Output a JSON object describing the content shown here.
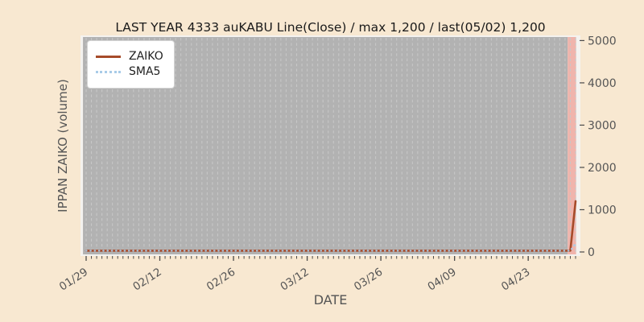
{
  "colors": {
    "fig_bg": "#f8e8d1",
    "plot_face": "#f4f2ef",
    "bars_fill": "#b2b2b2",
    "grid_line": "#c7c7c7",
    "band": "#f0b4ac",
    "zaiko": "#a64b2a",
    "sma5": "#a8cbe8",
    "tick_mark": "#4a4a4a",
    "text_dark": "#1a1a1a",
    "text_muted": "#555555"
  },
  "chart_data": {
    "type": "line",
    "title": "LAST YEAR 4333 auKABU Line(Close) / max 1,200 / last(05/02) 1,200",
    "xlabel": "DATE",
    "ylabel": "IPPAN ZAIKO (volume)",
    "ylim": [
      0,
      5000
    ],
    "y_ticks": [
      0,
      1000,
      2000,
      3000,
      4000,
      5000
    ],
    "n_days": 94,
    "x_start_date": "01/29",
    "x_end_date": "05/02",
    "x_major_ticks": [
      {
        "day": 0,
        "label": "01/29"
      },
      {
        "day": 14,
        "label": "02/12"
      },
      {
        "day": 28,
        "label": "02/26"
      },
      {
        "day": 42,
        "label": "03/12"
      },
      {
        "day": 56,
        "label": "03/26"
      },
      {
        "day": 70,
        "label": "04/09"
      },
      {
        "day": 84,
        "label": "04/23"
      }
    ],
    "grid": "daily vertical dashed lines over shaded data region",
    "shaded_region": {
      "from_day": -0.6,
      "to_day": 91.5
    },
    "highlight_band": {
      "from_day": 91.5,
      "to_day": 93.1
    },
    "legend": {
      "position": "upper-left",
      "entries": [
        {
          "label": "ZAIKO",
          "style": "solid"
        },
        {
          "label": "SMA5",
          "style": "dotted"
        }
      ]
    },
    "series": [
      {
        "name": "ZAIKO",
        "style": "solid",
        "point_dates": [
          "01/29",
          "05/01",
          "05/02"
        ],
        "point_days": [
          0,
          92,
          93
        ],
        "values": [
          30,
          30,
          1200
        ]
      },
      {
        "name": "SMA5",
        "style": "dotted",
        "point_dates": [
          "01/29",
          "05/01",
          "05/02"
        ],
        "point_days": [
          0,
          92,
          93
        ],
        "values": [
          30,
          30,
          200
        ]
      }
    ],
    "annotations": {
      "max": "1,200",
      "last_date": "05/02",
      "last_value": "1,200"
    }
  }
}
